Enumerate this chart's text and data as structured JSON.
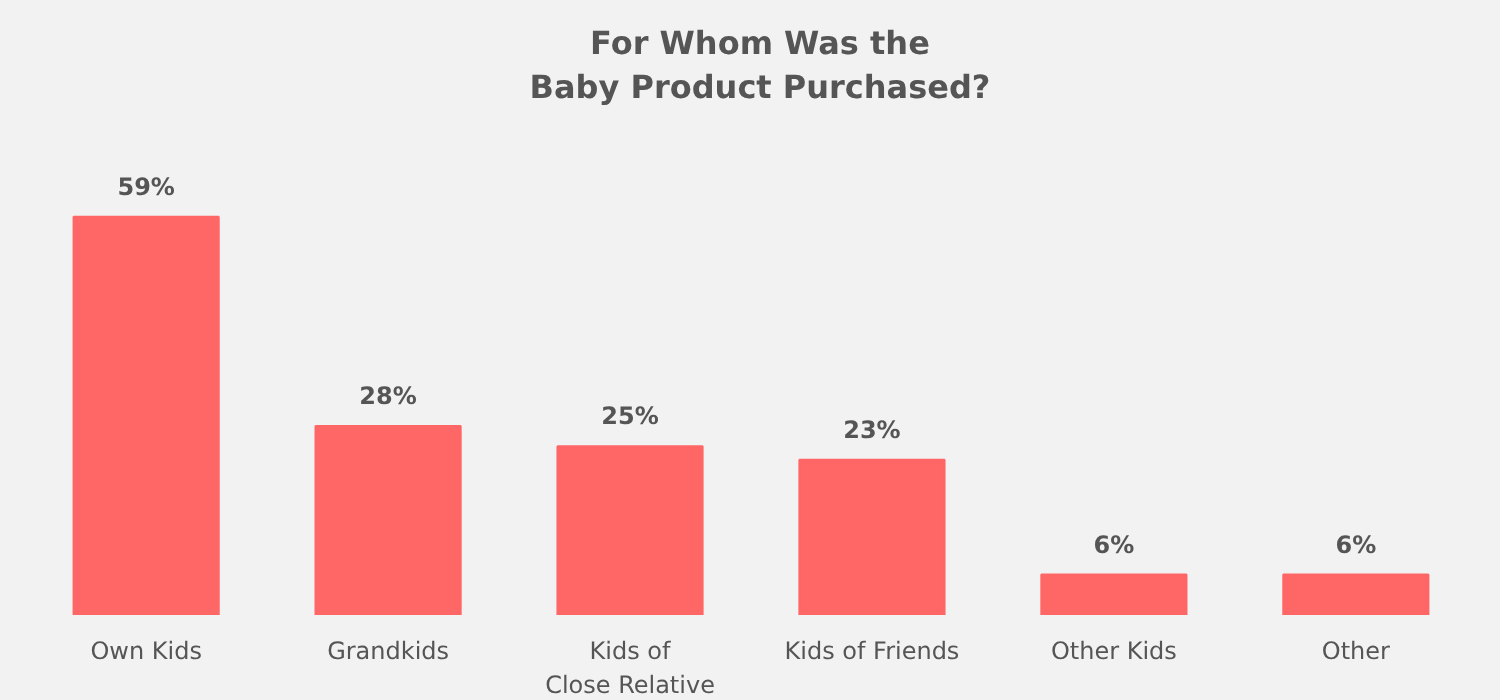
{
  "chart_data": {
    "type": "bar",
    "title": "For Whom Was the\nBaby Product Purchased?",
    "categories": [
      "Own Kids",
      "Grandkids",
      "Kids of\nClose Relative",
      "Kids of Friends",
      "Other Kids",
      "Other"
    ],
    "values": [
      59,
      28,
      25,
      23,
      6,
      6
    ],
    "value_labels": [
      "59%",
      "28%",
      "25%",
      "23%",
      "6%",
      "6%"
    ],
    "color": "#ff6666"
  }
}
